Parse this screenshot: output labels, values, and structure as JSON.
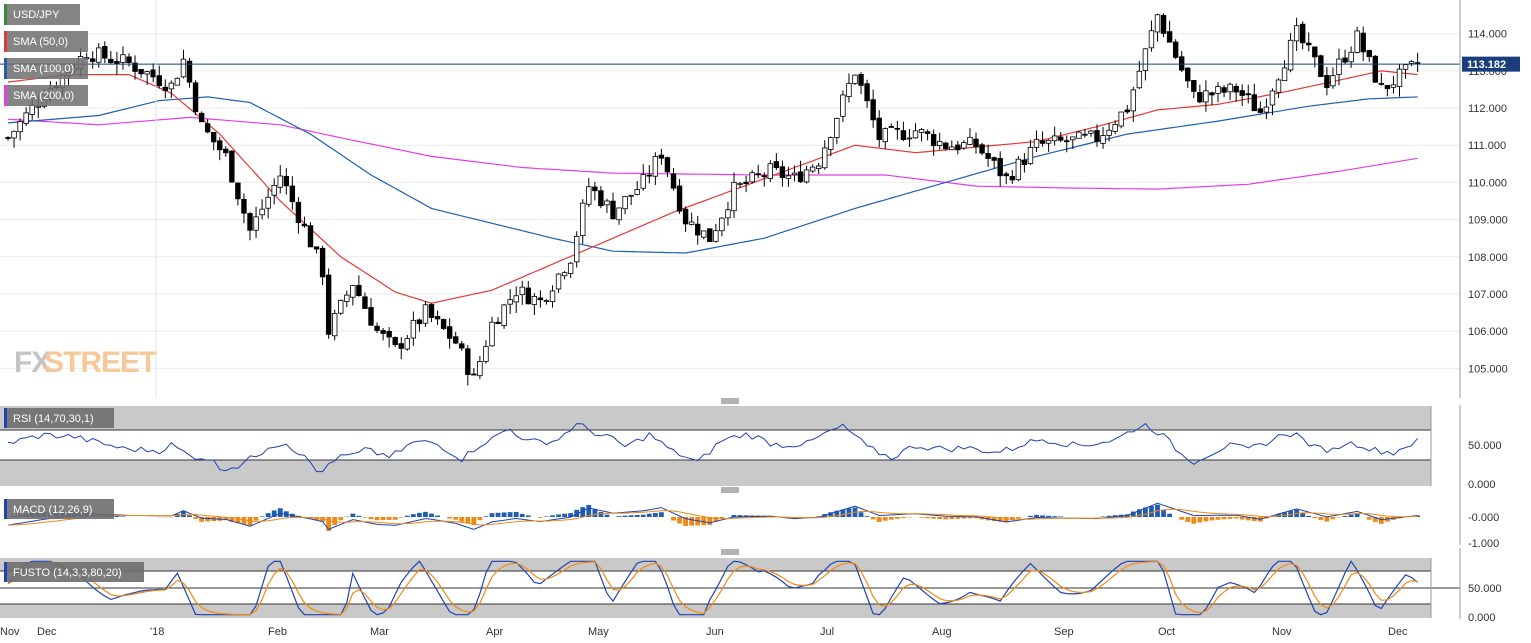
{
  "chart_data": {
    "type": "candlestick",
    "symbol": "USD/JPY",
    "last_price": "113.182",
    "watermark": {
      "fx": "FX",
      "street": "STREET"
    },
    "x_ticks": [
      "Nov",
      "Dec",
      "'18",
      "Feb",
      "Mar",
      "Apr",
      "May",
      "Jun",
      "Jul",
      "Aug",
      "Sep",
      "Oct",
      "Nov",
      "Dec"
    ],
    "price_axis": {
      "ylim": [
        104.2,
        114.8
      ],
      "ticks": [
        "114.000",
        "113.000",
        "112.000",
        "111.000",
        "110.000",
        "109.000",
        "108.000",
        "107.000",
        "106.000",
        "105.000"
      ]
    },
    "legend": [
      {
        "label": "SMA (50,0)",
        "color": "#e53935"
      },
      {
        "label": "SMA (100,0)",
        "color": "#1e5fb4"
      },
      {
        "label": "SMA (200,0)",
        "color": "#e53ee5"
      }
    ],
    "sma_anchors": {
      "sma50": [
        [
          0,
          112.7
        ],
        [
          10,
          112.9
        ],
        [
          20,
          112.9
        ],
        [
          27,
          112.4
        ],
        [
          35,
          111.3
        ],
        [
          45,
          109.5
        ],
        [
          55,
          108.0
        ],
        [
          64,
          107.05
        ],
        [
          70,
          106.75
        ],
        [
          80,
          107.1
        ],
        [
          90,
          107.8
        ],
        [
          100,
          108.5
        ],
        [
          110,
          109.2
        ],
        [
          120,
          109.8
        ],
        [
          130,
          110.4
        ],
        [
          140,
          111.0
        ],
        [
          150,
          110.8
        ],
        [
          160,
          110.95
        ],
        [
          170,
          111.1
        ],
        [
          180,
          111.5
        ],
        [
          190,
          111.95
        ],
        [
          200,
          112.1
        ],
        [
          210,
          112.4
        ],
        [
          220,
          112.75
        ],
        [
          227,
          113.0
        ],
        [
          233,
          112.9
        ]
      ],
      "sma100": [
        [
          0,
          111.6
        ],
        [
          15,
          111.8
        ],
        [
          25,
          112.2
        ],
        [
          33,
          112.3
        ],
        [
          40,
          112.15
        ],
        [
          50,
          111.3
        ],
        [
          60,
          110.2
        ],
        [
          70,
          109.3
        ],
        [
          80,
          108.9
        ],
        [
          90,
          108.5
        ],
        [
          100,
          108.15
        ],
        [
          112,
          108.1
        ],
        [
          125,
          108.5
        ],
        [
          140,
          109.3
        ],
        [
          155,
          110.0
        ],
        [
          170,
          110.7
        ],
        [
          185,
          111.3
        ],
        [
          200,
          111.65
        ],
        [
          215,
          112.05
        ],
        [
          225,
          112.25
        ],
        [
          233,
          112.3
        ]
      ],
      "sma200": [
        [
          0,
          111.7
        ],
        [
          15,
          111.55
        ],
        [
          30,
          111.75
        ],
        [
          45,
          111.55
        ],
        [
          55,
          111.2
        ],
        [
          70,
          110.7
        ],
        [
          85,
          110.4
        ],
        [
          100,
          110.25
        ],
        [
          125,
          110.2
        ],
        [
          145,
          110.2
        ],
        [
          160,
          109.9
        ],
        [
          175,
          109.85
        ],
        [
          190,
          109.82
        ],
        [
          205,
          109.95
        ],
        [
          220,
          110.3
        ],
        [
          233,
          110.65
        ]
      ]
    },
    "price_path": [
      [
        0,
        111.2
      ],
      [
        6,
        112.4
      ],
      [
        13,
        113.5
      ],
      [
        20,
        113.2
      ],
      [
        27,
        112.6
      ],
      [
        29,
        113.3
      ],
      [
        32,
        111.5
      ],
      [
        36,
        110.7
      ],
      [
        40,
        108.7
      ],
      [
        45,
        110.2
      ],
      [
        50,
        108.4
      ],
      [
        52,
        107.6
      ],
      [
        53,
        106.0
      ],
      [
        57,
        107.3
      ],
      [
        61,
        106.0
      ],
      [
        64,
        105.5
      ],
      [
        69,
        106.5
      ],
      [
        74,
        105.7
      ],
      [
        77,
        104.7
      ],
      [
        80,
        106.2
      ],
      [
        84,
        107.1
      ],
      [
        88,
        106.8
      ],
      [
        93,
        108.0
      ],
      [
        96,
        109.9
      ],
      [
        100,
        109.2
      ],
      [
        105,
        110.0
      ],
      [
        108,
        110.8
      ],
      [
        112,
        109.0
      ],
      [
        116,
        108.5
      ],
      [
        120,
        109.8
      ],
      [
        126,
        110.3
      ],
      [
        130,
        110.1
      ],
      [
        134,
        110.6
      ],
      [
        140,
        113.0
      ],
      [
        144,
        111.2
      ],
      [
        150,
        111.4
      ],
      [
        155,
        111.0
      ],
      [
        160,
        111.0
      ],
      [
        165,
        110.1
      ],
      [
        170,
        111.0
      ],
      [
        175,
        111.1
      ],
      [
        180,
        111.2
      ],
      [
        185,
        112.0
      ],
      [
        190,
        114.5
      ],
      [
        196,
        112.3
      ],
      [
        203,
        112.5
      ],
      [
        207,
        111.9
      ],
      [
        213,
        114.0
      ],
      [
        218,
        112.7
      ],
      [
        223,
        113.9
      ],
      [
        227,
        112.5
      ],
      [
        233,
        113.18
      ]
    ],
    "panels": [
      {
        "label": "RSI (14,70,30,1)",
        "ticks": [
          "50.000",
          "0.000"
        ]
      },
      {
        "label": "MACD (12,26,9)",
        "ticks": [
          "-0.000",
          "-1.000"
        ]
      },
      {
        "label": "FUSTO (14,3,3,80,20)",
        "ticks": [
          "50.000",
          "0.000"
        ]
      }
    ]
  }
}
